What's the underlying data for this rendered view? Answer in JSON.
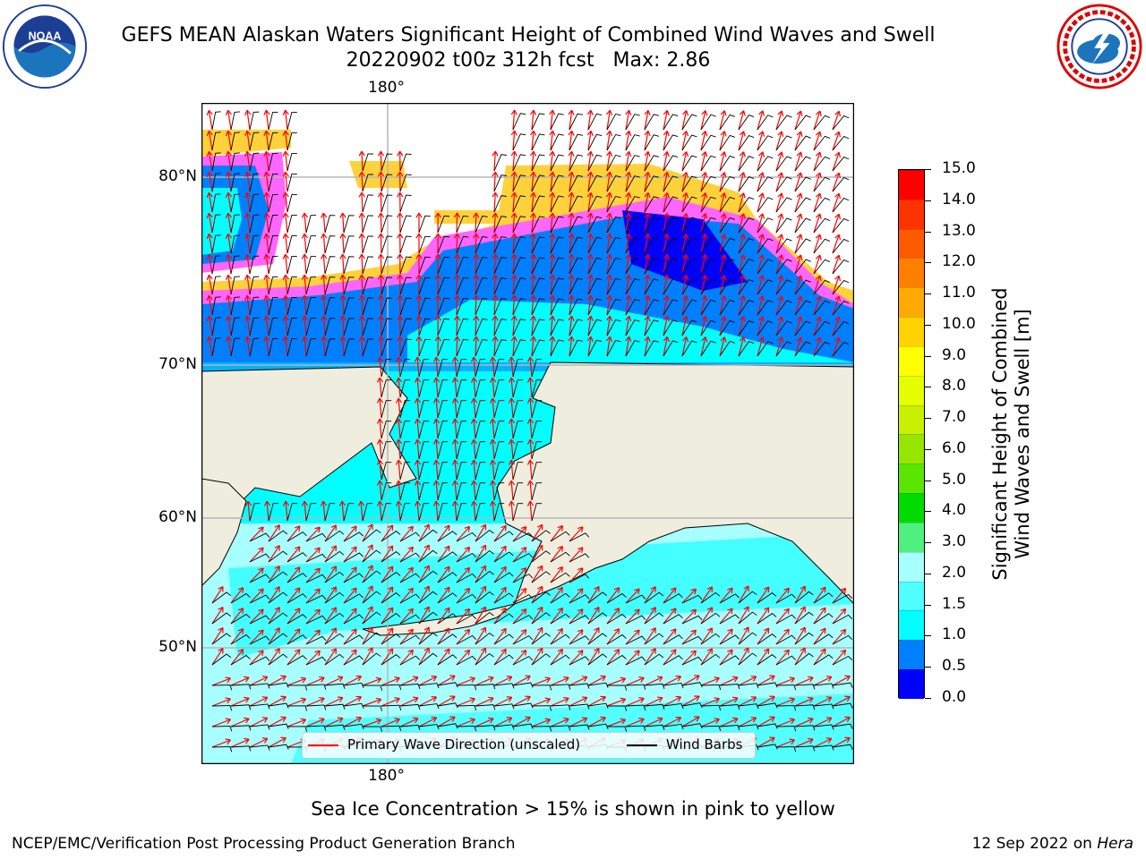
{
  "title_line1": "GEFS MEAN Alaskan Waters Significant Height of Combined Wind Waves and Swell",
  "title_line2": "20220902 t00z 312h fcst   Max: 2.86",
  "logos": {
    "left": "NOAA",
    "right": "National Weather Service"
  },
  "map": {
    "lon_label_top": "180°",
    "lon_label_bottom": "180°",
    "lat_labels": [
      "80°N",
      "70°N",
      "60°N",
      "50°N"
    ],
    "colors": {
      "land": "#efedde",
      "ocean_low": "#00ffff",
      "ocean_mid": "#a8ffff",
      "deep": "#0000ff",
      "blue": "#0080ff",
      "ice_pink": "#ff66ff",
      "ice_yellow": "#ffd23c",
      "wave_arrow": "#ff0000",
      "wind_barb": "#000000"
    }
  },
  "legend": {
    "wave_label": "Primary Wave Direction (unscaled)",
    "wind_label": "Wind Barbs"
  },
  "colorbar": {
    "label_line1": "Significant Height of Combined",
    "label_line2": "Wind Waves and Swell [m]",
    "ticks": [
      "15.0",
      "14.0",
      "13.0",
      "12.0",
      "11.0",
      "10.0",
      "9.0",
      "8.0",
      "7.0",
      "6.0",
      "5.0",
      "4.0",
      "3.0",
      "2.0",
      "1.5",
      "1.0",
      "0.5",
      "0.0"
    ],
    "colors_top_to_bottom": [
      "#ff0000",
      "#ff3300",
      "#ff5a00",
      "#ff8000",
      "#ffaa00",
      "#ffd200",
      "#ffff00",
      "#e6ff00",
      "#c8f000",
      "#96e600",
      "#5ae600",
      "#00dc00",
      "#50f080",
      "#a8ffff",
      "#50ffff",
      "#00ffff",
      "#0080ff",
      "#0000ff"
    ]
  },
  "note": "Sea Ice Concentration > 15% is shown in pink to yellow",
  "footer_left": "NCEP/EMC/Verification Post Processing Product Generation Branch",
  "footer_right_prefix": "12 Sep 2022 on ",
  "footer_right_host": "Hera"
}
